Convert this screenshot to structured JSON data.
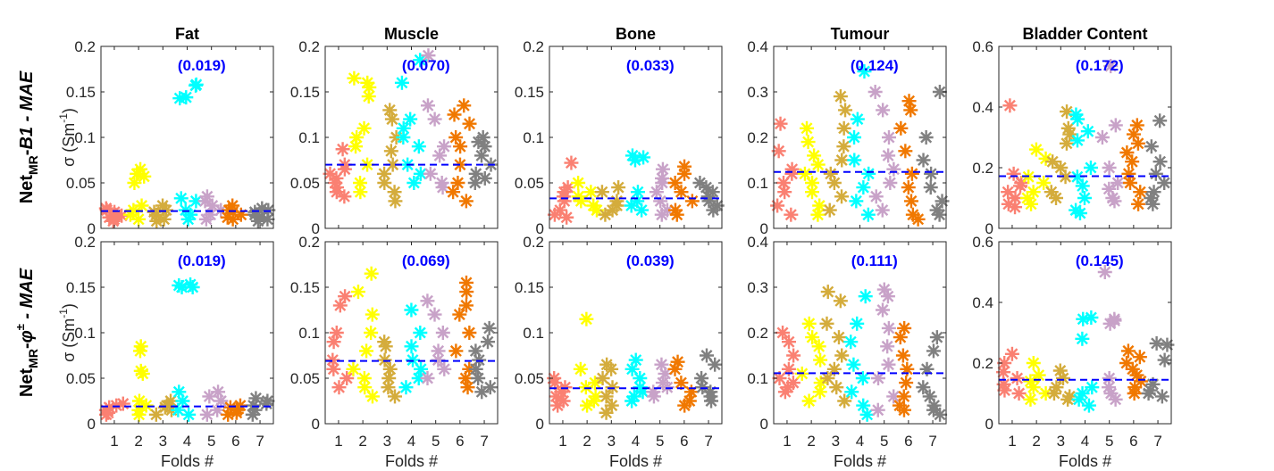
{
  "chart_data": {
    "type": "scatter",
    "fold_colors": [
      "#fa8072",
      "#ffff00",
      "#d4ac3c",
      "#00ffff",
      "#c8a2c8",
      "#f07800",
      "#808080"
    ],
    "mean_line_color": "#0000ff",
    "xlabel": "Folds #",
    "xticks": [
      "1",
      "2",
      "3",
      "4",
      "5",
      "6",
      "7"
    ],
    "xlim": [
      0.45,
      7.55
    ],
    "rows": [
      {
        "label_main": "Net",
        "label_sub": "MR",
        "label_sep": "-",
        "label_model": "B1",
        "label_sup": "",
        "label_tail": " - MAE",
        "ylabel": "σ (Sm",
        "ylabel_sup": "-1",
        "ylabel_close": ")"
      },
      {
        "label_main": "Net",
        "label_sub": "MR",
        "label_sep": "-",
        "label_model": "φ",
        "label_sup": "±",
        "label_tail": " - MAE",
        "ylabel": "σ (Sm",
        "ylabel_sup": "-1",
        "ylabel_close": ")"
      }
    ],
    "panels": [
      {
        "row": 0,
        "col": 0,
        "title": "Fat",
        "ylim": [
          0,
          0.2
        ],
        "yticks": [
          "0",
          "0.05",
          "0.1",
          "0.15",
          "0.2"
        ],
        "mean": 0.019,
        "mean_label": "(0.019)",
        "folds": [
          [
            0.01,
            0.015,
            0.02,
            0.012,
            0.008,
            0.018,
            0.022,
            0.014
          ],
          [
            0.065,
            0.06,
            0.05,
            0.057,
            0.025,
            0.015,
            0.01,
            0.02
          ],
          [
            0.02,
            0.015,
            0.01,
            0.025,
            0.008,
            0.018
          ],
          [
            0.157,
            0.158,
            0.143,
            0.144,
            0.03,
            0.033,
            0.02,
            0.01,
            0.015
          ],
          [
            0.035,
            0.03,
            0.02,
            0.015,
            0.01,
            0.025
          ],
          [
            0.025,
            0.02,
            0.015,
            0.01,
            0.018,
            0.012
          ],
          [
            0.02,
            0.015,
            0.01,
            0.012,
            0.018,
            0.022,
            0.008
          ]
        ]
      },
      {
        "row": 0,
        "col": 1,
        "title": "Muscle",
        "ylim": [
          0,
          0.2
        ],
        "yticks": [
          "0",
          "0.05",
          "0.1",
          "0.15",
          "0.2"
        ],
        "mean": 0.07,
        "mean_label": "(0.070)",
        "folds": [
          [
            0.087,
            0.06,
            0.05,
            0.045,
            0.04,
            0.035,
            0.055,
            0.065,
            0.07
          ],
          [
            0.165,
            0.16,
            0.145,
            0.155,
            0.11,
            0.1,
            0.09,
            0.07,
            0.05,
            0.04
          ],
          [
            0.13,
            0.12,
            0.1,
            0.085,
            0.07,
            0.06,
            0.05,
            0.04,
            0.03
          ],
          [
            0.16,
            0.12,
            0.11,
            0.1,
            0.09,
            0.07,
            0.06,
            0.05,
            0.185
          ],
          [
            0.19,
            0.135,
            0.12,
            0.09,
            0.08,
            0.06,
            0.05,
            0.045
          ],
          [
            0.135,
            0.125,
            0.115,
            0.1,
            0.09,
            0.07,
            0.05,
            0.04,
            0.03
          ],
          [
            0.1,
            0.09,
            0.08,
            0.07,
            0.06,
            0.055,
            0.05,
            0.095
          ]
        ]
      },
      {
        "row": 0,
        "col": 2,
        "title": "Bone",
        "ylim": [
          0,
          0.2
        ],
        "yticks": [
          "0",
          "0.05",
          "0.1",
          "0.15",
          "0.2"
        ],
        "mean": 0.033,
        "mean_label": "(0.033)",
        "folds": [
          [
            0.072,
            0.04,
            0.035,
            0.03,
            0.02,
            0.015,
            0.012,
            0.045
          ],
          [
            0.05,
            0.04,
            0.03,
            0.025,
            0.02,
            0.035
          ],
          [
            0.045,
            0.04,
            0.03,
            0.02,
            0.015,
            0.025
          ],
          [
            0.08,
            0.078,
            0.075,
            0.04,
            0.03,
            0.025,
            0.02
          ],
          [
            0.065,
            0.055,
            0.04,
            0.03,
            0.02,
            0.015,
            0.05
          ],
          [
            0.068,
            0.05,
            0.04,
            0.03,
            0.02,
            0.015,
            0.06
          ],
          [
            0.05,
            0.045,
            0.04,
            0.035,
            0.03,
            0.025,
            0.02
          ]
        ]
      },
      {
        "row": 0,
        "col": 3,
        "title": "Tumour",
        "ylim": [
          0,
          0.4
        ],
        "yticks": [
          "0",
          "0.1",
          "0.2",
          "0.3",
          "0.4"
        ],
        "mean": 0.124,
        "mean_label": "(0.124)",
        "folds": [
          [
            0.23,
            0.17,
            0.13,
            0.12,
            0.1,
            0.08,
            0.05,
            0.03
          ],
          [
            0.22,
            0.19,
            0.16,
            0.14,
            0.12,
            0.1,
            0.08,
            0.05,
            0.03
          ],
          [
            0.29,
            0.26,
            0.22,
            0.18,
            0.15,
            0.12,
            0.1,
            0.07,
            0.04
          ],
          [
            0.345,
            0.24,
            0.2,
            0.15,
            0.12,
            0.09,
            0.06,
            0.03
          ],
          [
            0.3,
            0.26,
            0.2,
            0.16,
            0.13,
            0.1,
            0.07,
            0.04
          ],
          [
            0.28,
            0.26,
            0.22,
            0.17,
            0.12,
            0.09,
            0.06,
            0.03,
            0.02
          ],
          [
            0.3,
            0.2,
            0.15,
            0.12,
            0.09,
            0.06,
            0.04,
            0.03
          ]
        ]
      },
      {
        "row": 0,
        "col": 4,
        "title": "Bladder Content",
        "ylim": [
          0,
          0.6
        ],
        "yticks": [
          "0",
          "0.2",
          "0.4",
          "0.6"
        ],
        "mean": 0.172,
        "mean_label": "(0.172)",
        "folds": [
          [
            0.405,
            0.18,
            0.15,
            0.14,
            0.12,
            0.1,
            0.08,
            0.07
          ],
          [
            0.26,
            0.23,
            0.17,
            0.15,
            0.12,
            0.1,
            0.08
          ],
          [
            0.385,
            0.33,
            0.31,
            0.28,
            0.22,
            0.2,
            0.17,
            0.12,
            0.1
          ],
          [
            0.375,
            0.36,
            0.32,
            0.29,
            0.2,
            0.17,
            0.14,
            0.1,
            0.06,
            0.05
          ],
          [
            0.535,
            0.34,
            0.3,
            0.2,
            0.15,
            0.13,
            0.1,
            0.09
          ],
          [
            0.34,
            0.31,
            0.28,
            0.25,
            0.22,
            0.18,
            0.15,
            0.12,
            0.08
          ],
          [
            0.355,
            0.27,
            0.22,
            0.18,
            0.15,
            0.12,
            0.1,
            0.08
          ]
        ]
      },
      {
        "row": 1,
        "col": 0,
        "title": "",
        "ylim": [
          0,
          0.2
        ],
        "yticks": [
          "0",
          "0.05",
          "0.1",
          "0.15",
          "0.2"
        ],
        "mean": 0.019,
        "mean_label": "(0.019)",
        "folds": [
          [
            0.02,
            0.015,
            0.012,
            0.01,
            0.018,
            0.022
          ],
          [
            0.085,
            0.08,
            0.055,
            0.058,
            0.025,
            0.02,
            0.015,
            0.01
          ],
          [
            0.025,
            0.02,
            0.015,
            0.01,
            0.018
          ],
          [
            0.15,
            0.152,
            0.153,
            0.15,
            0.035,
            0.025,
            0.015,
            0.01
          ],
          [
            0.035,
            0.03,
            0.025,
            0.015,
            0.01
          ],
          [
            0.02,
            0.015,
            0.01,
            0.018,
            0.012
          ],
          [
            0.028,
            0.025,
            0.02,
            0.015,
            0.01,
            0.022
          ]
        ]
      },
      {
        "row": 1,
        "col": 1,
        "title": "",
        "ylim": [
          0,
          0.2
        ],
        "yticks": [
          "0",
          "0.05",
          "0.1",
          "0.15",
          "0.2"
        ],
        "mean": 0.069,
        "mean_label": "(0.069)",
        "folds": [
          [
            0.14,
            0.13,
            0.1,
            0.09,
            0.07,
            0.06,
            0.05,
            0.04
          ],
          [
            0.165,
            0.145,
            0.12,
            0.1,
            0.08,
            0.06,
            0.05,
            0.04,
            0.03
          ],
          [
            0.09,
            0.085,
            0.07,
            0.06,
            0.05,
            0.04,
            0.03
          ],
          [
            0.125,
            0.1,
            0.085,
            0.07,
            0.06,
            0.05,
            0.04
          ],
          [
            0.135,
            0.12,
            0.1,
            0.08,
            0.07,
            0.06,
            0.05
          ],
          [
            0.155,
            0.145,
            0.13,
            0.12,
            0.1,
            0.08,
            0.06,
            0.05,
            0.04
          ],
          [
            0.105,
            0.09,
            0.08,
            0.07,
            0.06,
            0.05,
            0.04,
            0.035
          ]
        ]
      },
      {
        "row": 1,
        "col": 2,
        "title": "",
        "ylim": [
          0,
          0.2
        ],
        "yticks": [
          "0",
          "0.05",
          "0.1",
          "0.15",
          "0.2"
        ],
        "mean": 0.039,
        "mean_label": "(0.039)",
        "folds": [
          [
            0.05,
            0.045,
            0.04,
            0.035,
            0.03,
            0.025,
            0.02
          ],
          [
            0.115,
            0.06,
            0.045,
            0.04,
            0.03,
            0.025,
            0.02
          ],
          [
            0.065,
            0.06,
            0.05,
            0.04,
            0.03,
            0.02,
            0.012
          ],
          [
            0.07,
            0.06,
            0.05,
            0.04,
            0.035,
            0.03,
            0.025
          ],
          [
            0.065,
            0.055,
            0.045,
            0.04,
            0.035,
            0.03
          ],
          [
            0.068,
            0.06,
            0.045,
            0.035,
            0.025,
            0.02
          ],
          [
            0.075,
            0.065,
            0.05,
            0.04,
            0.035,
            0.03,
            0.025
          ]
        ]
      },
      {
        "row": 1,
        "col": 3,
        "title": "",
        "ylim": [
          0,
          0.4
        ],
        "yticks": [
          "0",
          "0.1",
          "0.2",
          "0.3",
          "0.4"
        ],
        "mean": 0.111,
        "mean_label": "(0.111)",
        "folds": [
          [
            0.2,
            0.18,
            0.15,
            0.12,
            0.1,
            0.09,
            0.08,
            0.07
          ],
          [
            0.22,
            0.19,
            0.17,
            0.14,
            0.11,
            0.09,
            0.07,
            0.05
          ],
          [
            0.29,
            0.27,
            0.22,
            0.19,
            0.15,
            0.12,
            0.1,
            0.08,
            0.05
          ],
          [
            0.28,
            0.22,
            0.18,
            0.13,
            0.1,
            0.07,
            0.04,
            0.02
          ],
          [
            0.295,
            0.28,
            0.25,
            0.21,
            0.17,
            0.13,
            0.1,
            0.06,
            0.03
          ],
          [
            0.21,
            0.19,
            0.15,
            0.12,
            0.09,
            0.06,
            0.04,
            0.03
          ],
          [
            0.19,
            0.16,
            0.12,
            0.08,
            0.06,
            0.04,
            0.03,
            0.02
          ]
        ]
      },
      {
        "row": 1,
        "col": 4,
        "title": "",
        "ylim": [
          0,
          0.6
        ],
        "yticks": [
          "0",
          "0.2",
          "0.4",
          "0.6"
        ],
        "mean": 0.145,
        "mean_label": "(0.145)",
        "folds": [
          [
            0.23,
            0.2,
            0.17,
            0.15,
            0.13,
            0.11,
            0.1
          ],
          [
            0.2,
            0.16,
            0.14,
            0.12,
            0.1,
            0.08
          ],
          [
            0.175,
            0.15,
            0.12,
            0.1,
            0.09,
            0.08
          ],
          [
            0.35,
            0.345,
            0.28,
            0.12,
            0.1,
            0.08,
            0.06
          ],
          [
            0.5,
            0.345,
            0.34,
            0.33,
            0.15,
            0.12,
            0.1,
            0.08
          ],
          [
            0.24,
            0.22,
            0.2,
            0.18,
            0.16,
            0.14,
            0.12,
            0.1
          ],
          [
            0.265,
            0.26,
            0.21,
            0.13,
            0.11,
            0.1,
            0.09
          ]
        ]
      }
    ]
  }
}
